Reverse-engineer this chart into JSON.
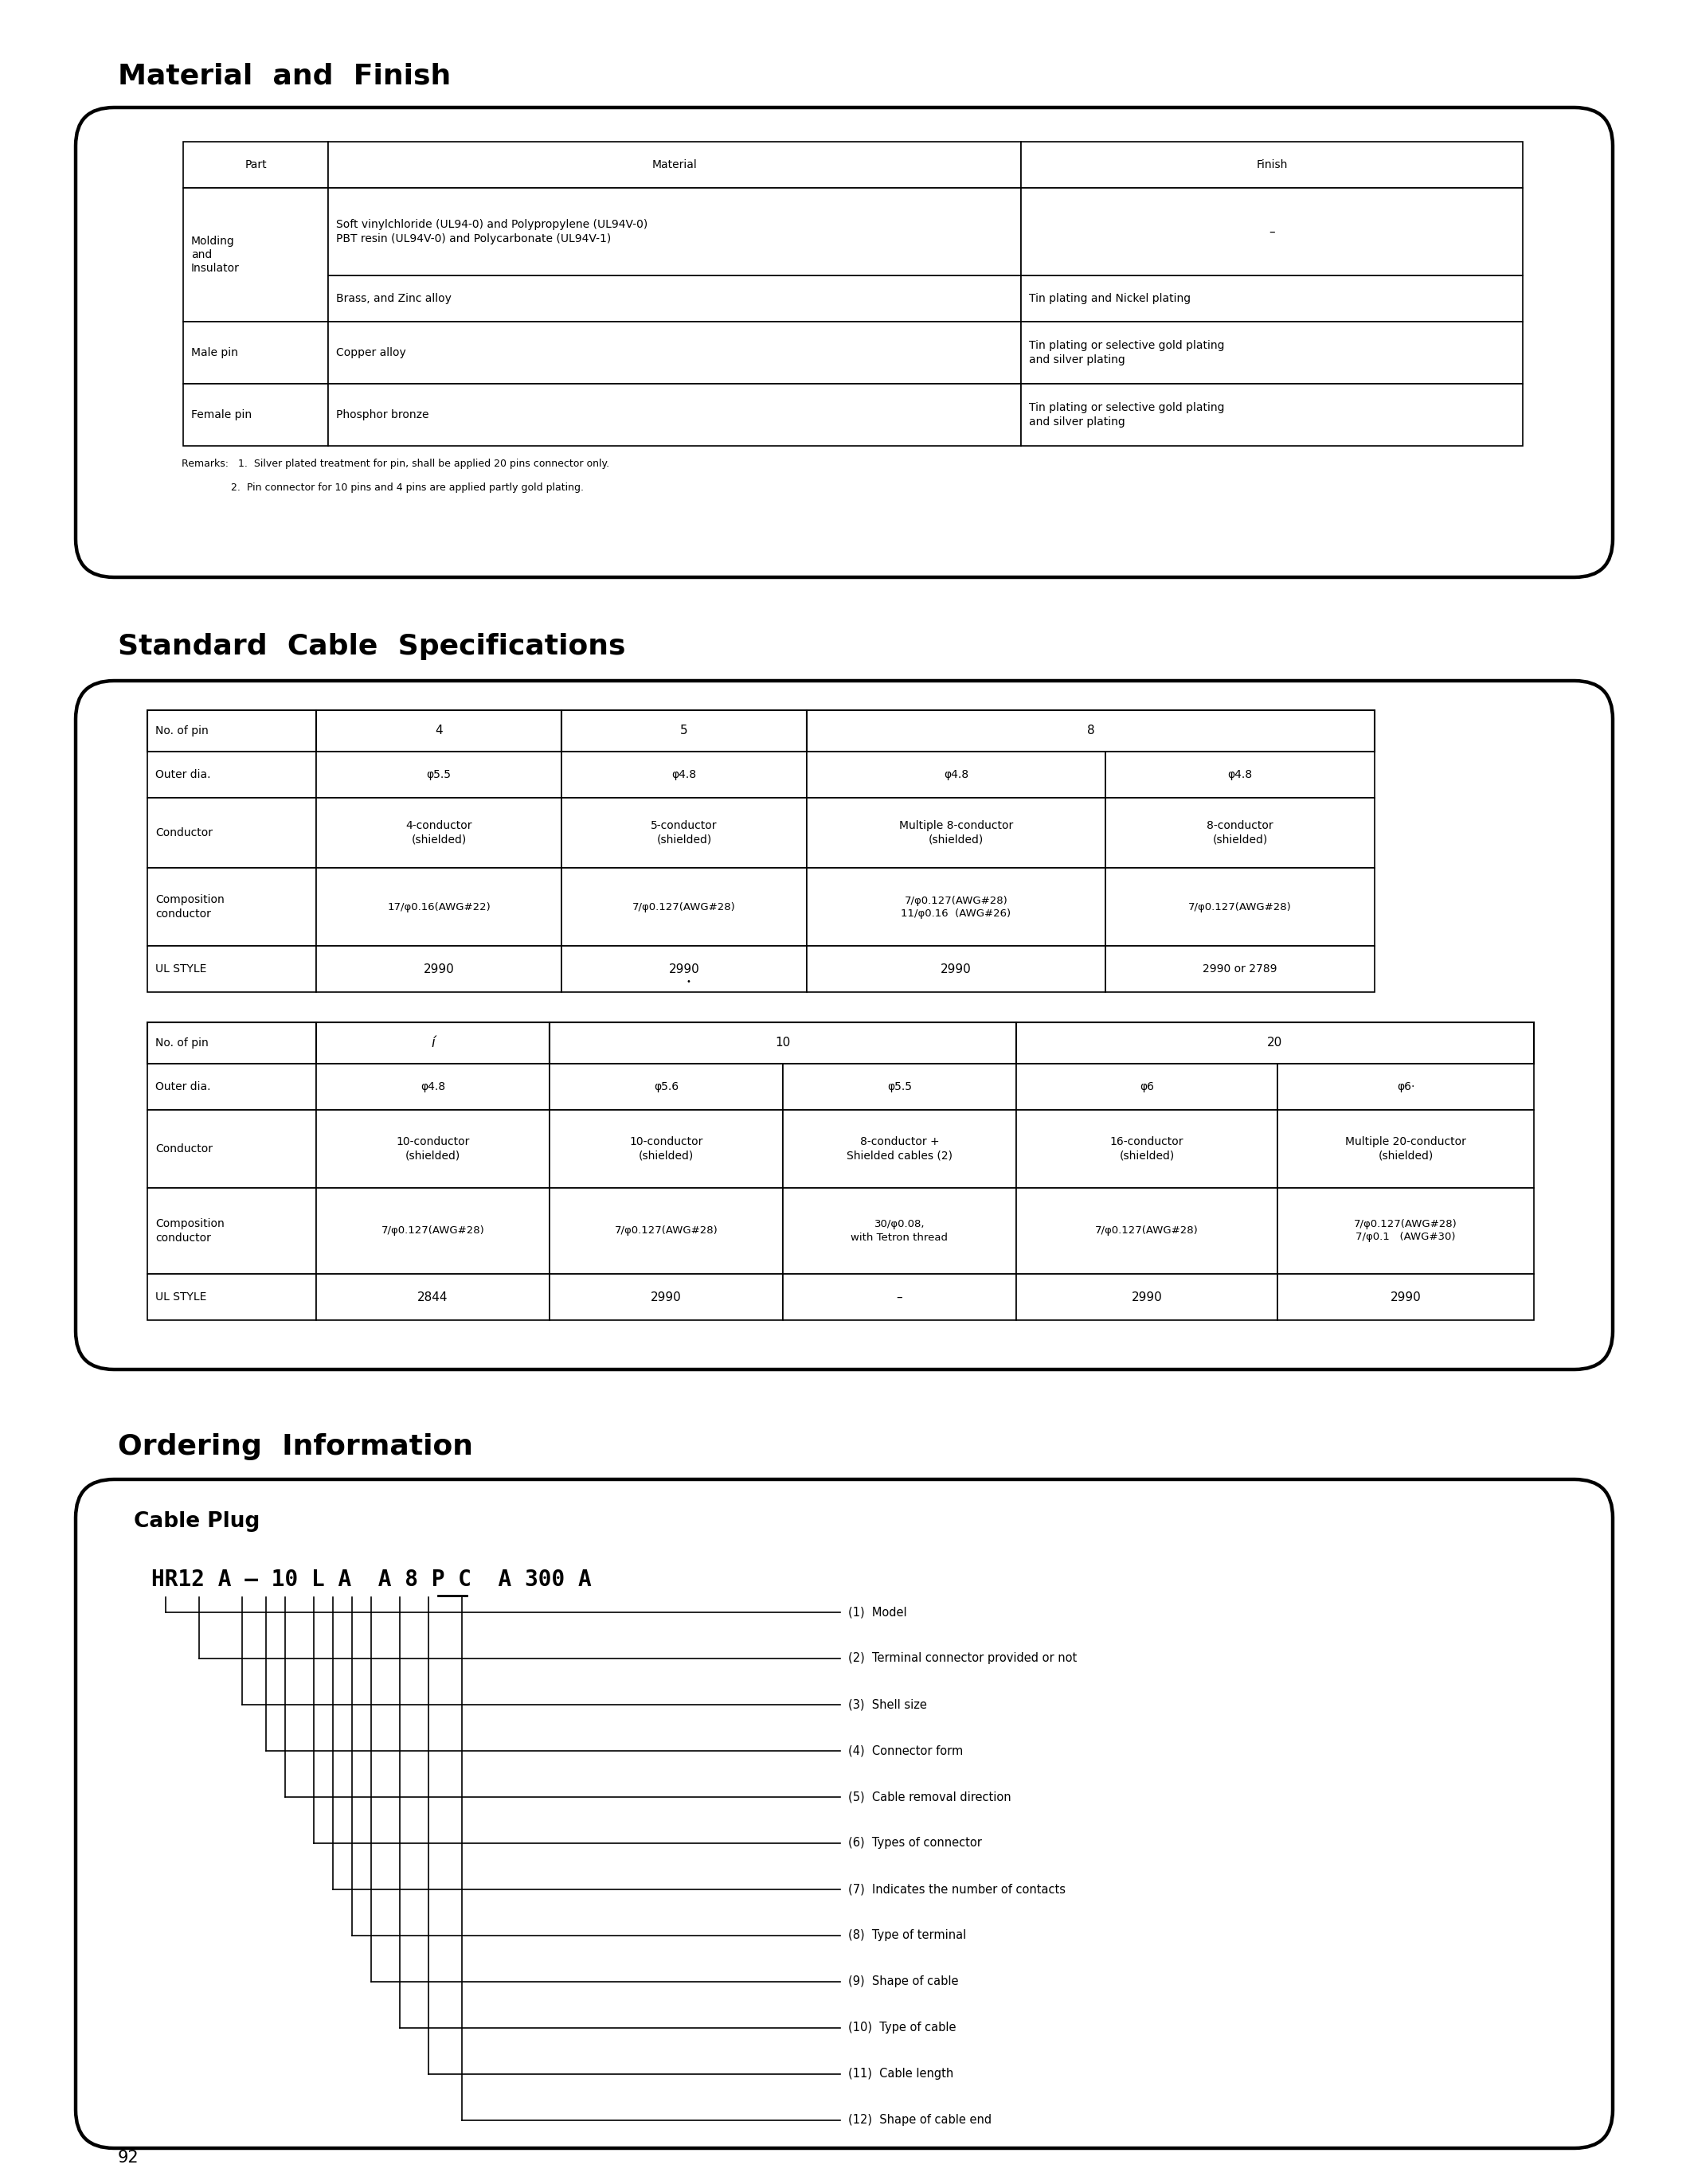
{
  "title1": "Material  and  Finish",
  "title2": "Standard  Cable  Specifications",
  "title3": "Ordering  Information",
  "page_number": "92",
  "ordering_labels": [
    "(1)  Model",
    "(2)  Terminal connector provided or not",
    "(3)  Shell size",
    "(4)  Connector form",
    "(5)  Cable removal direction",
    "(6)  Types of connector",
    "(7)  Indicates the number of contacts",
    "(8)  Type of terminal",
    "(9)  Shape of cable",
    "(10)  Type of cable",
    "(11)  Cable length",
    "(12)  Shape of cable end"
  ]
}
